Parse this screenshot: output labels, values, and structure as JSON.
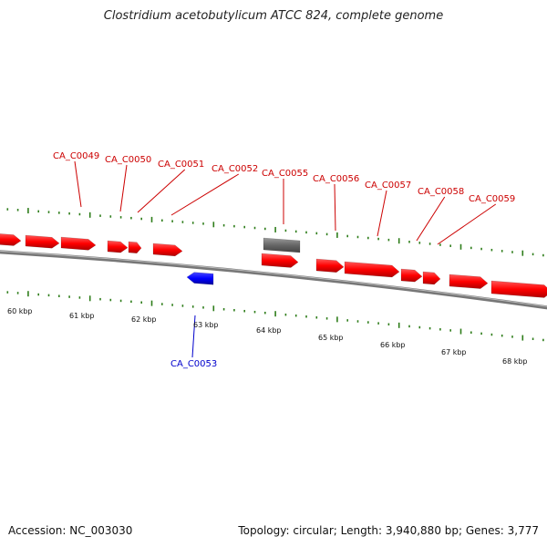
{
  "title": "Clostridium acetobutylicum ATCC 824, complete genome",
  "footer": {
    "accession": "Accession: NC_003030",
    "stats": "Topology: circular; Length: 3,940,880 bp; Genes: 3,777"
  },
  "colors": {
    "forward_gene": "#ff0000",
    "reverse_gene": "#0000ff",
    "other_feature": "#666666",
    "forward_label": "#cc0000",
    "reverse_label": "#0000cc",
    "tick": "#2e7d1a",
    "backbone": "#777777"
  },
  "scale_labels": [
    "60 kbp",
    "61 kbp",
    "62 kbp",
    "63 kbp",
    "64 kbp",
    "65 kbp",
    "66 kbp",
    "67 kbp",
    "68 kbp"
  ],
  "forward_gene_labels": [
    "CA_C0049",
    "CA_C0050",
    "CA_C0051",
    "CA_C0052",
    "CA_C0055",
    "CA_C0056",
    "CA_C0057",
    "CA_C0058",
    "CA_C0059"
  ],
  "reverse_gene_labels": [
    "CA_C0053"
  ],
  "other_feature_count": 1
}
